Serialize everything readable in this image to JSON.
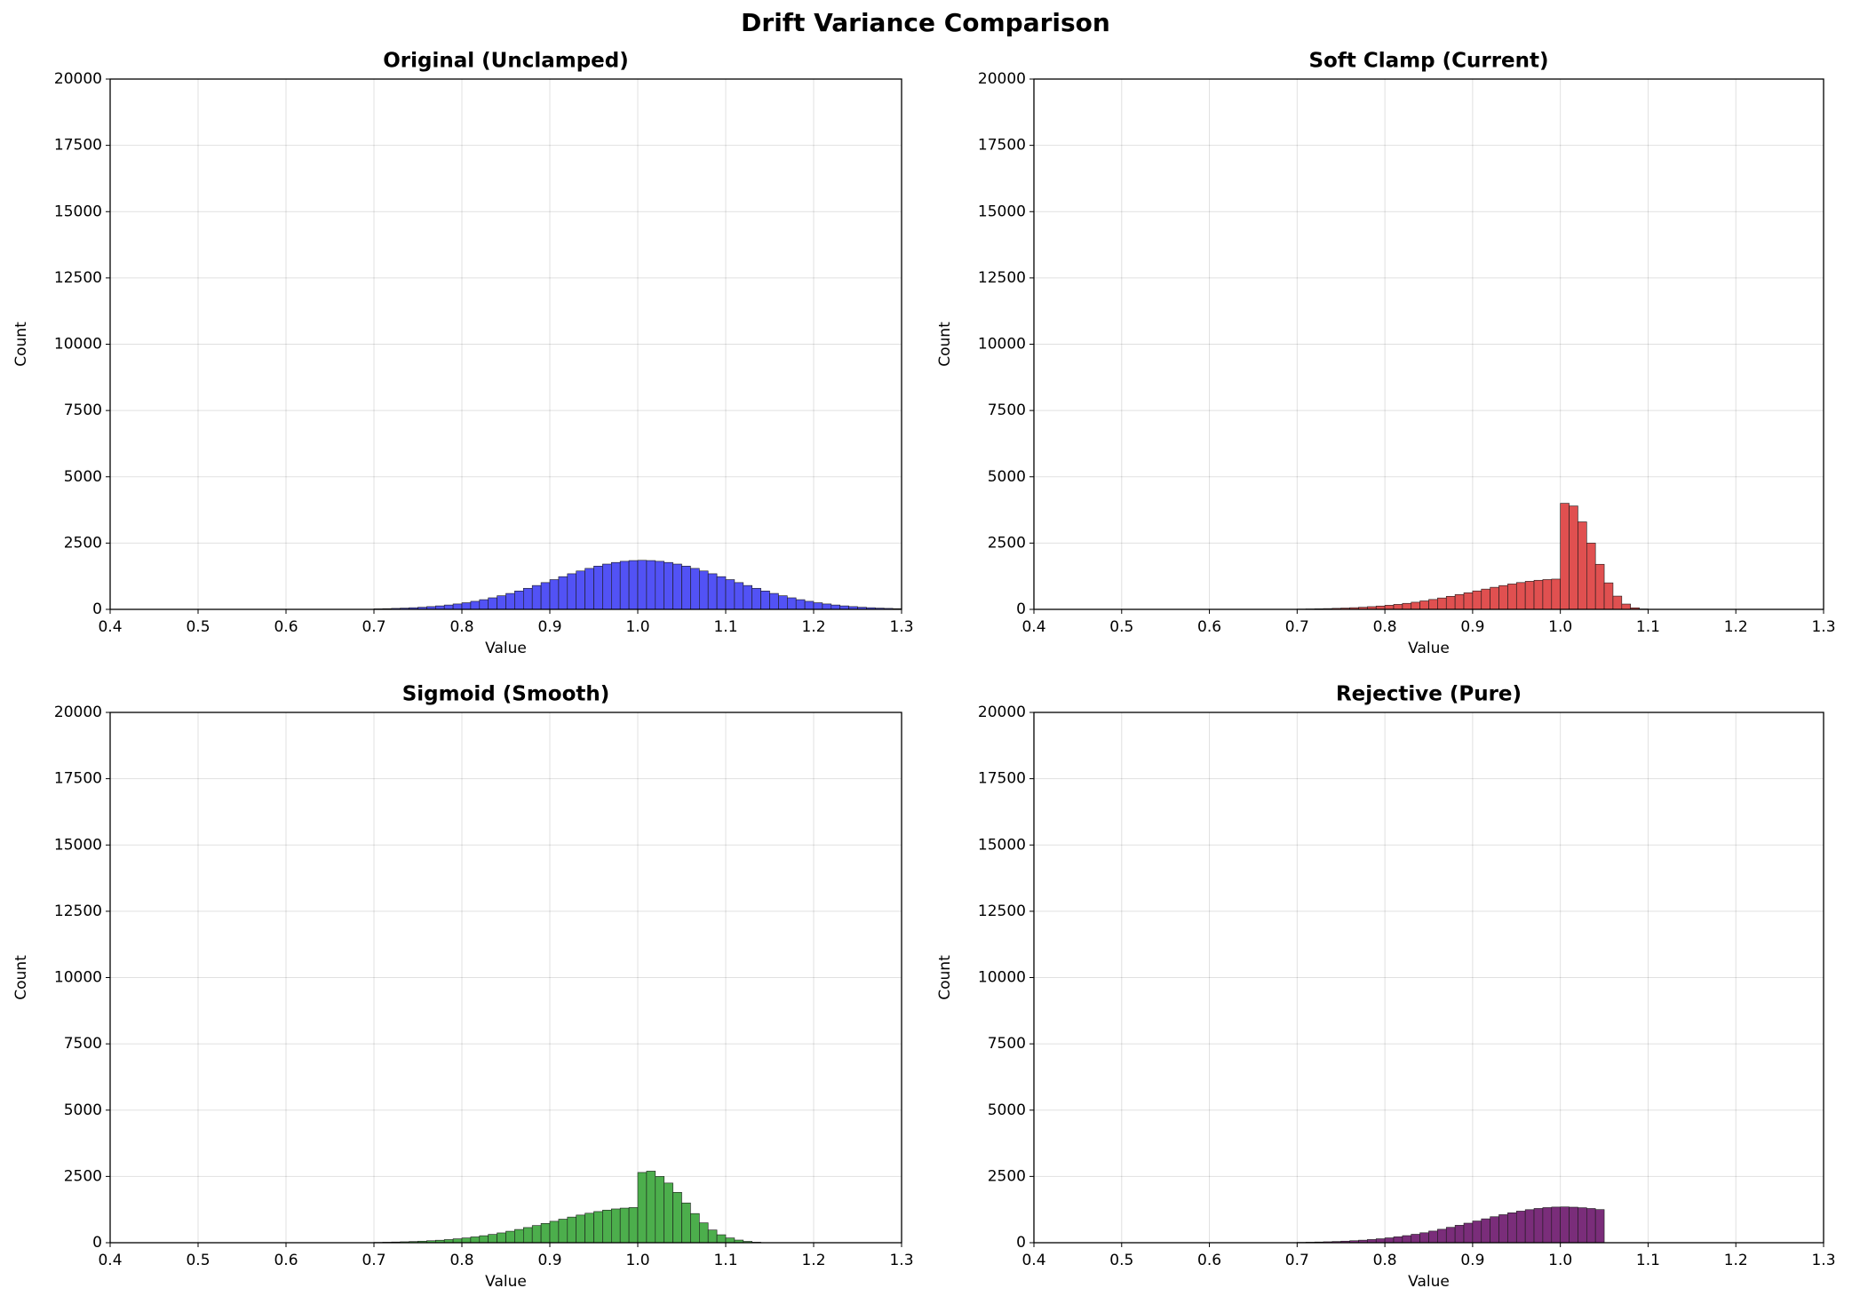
{
  "title": "Drift Variance Comparison",
  "chart_data": [
    {
      "type": "histogram",
      "title": "Original (Unclamped)",
      "xlabel": "Value",
      "ylabel": "Count",
      "color": "#5252f5",
      "edgecolor": "#1a1a1a",
      "bins": [
        0.7,
        0.71,
        0.72,
        0.73,
        0.74,
        0.75,
        0.76,
        0.77,
        0.78,
        0.79,
        0.8,
        0.81,
        0.82,
        0.83,
        0.84,
        0.85,
        0.86,
        0.87,
        0.88,
        0.89,
        0.9,
        0.91,
        0.92,
        0.93,
        0.94,
        0.95,
        0.96,
        0.97,
        0.98,
        0.99,
        1.0,
        1.01,
        1.02,
        1.03,
        1.04,
        1.05,
        1.06,
        1.07,
        1.08,
        1.09,
        1.1,
        1.11,
        1.12,
        1.13,
        1.14,
        1.15,
        1.16,
        1.17,
        1.18,
        1.19,
        1.2,
        1.21,
        1.22,
        1.23,
        1.24,
        1.25,
        1.26,
        1.27,
        1.28,
        1.29,
        1.3
      ],
      "counts": [
        20,
        28,
        37,
        48,
        63,
        81,
        104,
        131,
        164,
        204,
        250,
        304,
        366,
        436,
        514,
        601,
        694,
        795,
        900,
        1010,
        1122,
        1234,
        1343,
        1448,
        1545,
        1632,
        1708,
        1769,
        1813,
        1841,
        1850,
        1841,
        1813,
        1769,
        1708,
        1632,
        1545,
        1448,
        1343,
        1234,
        1122,
        1010,
        900,
        795,
        694,
        601,
        514,
        436,
        366,
        304,
        250,
        204,
        164,
        131,
        104,
        81,
        63,
        48,
        37,
        28
      ],
      "xlim": [
        0.4,
        1.3
      ],
      "ylim": [
        0,
        20000
      ],
      "xticks": [
        0.4,
        0.5,
        0.6,
        0.7,
        0.8,
        0.9,
        {
          "value": 1,
          "label": "1.0"
        },
        1.1,
        1.2,
        1.3
      ],
      "yticks": [
        0,
        2500,
        5000,
        7500,
        10000,
        12500,
        15000,
        17500,
        20000
      ],
      "grid": true
    },
    {
      "type": "histogram",
      "title": "Soft Clamp (Current)",
      "xlabel": "Value",
      "ylabel": "Count",
      "color": "#e05050",
      "edgecolor": "#1a1a1a",
      "bins": [
        0.7,
        0.71,
        0.72,
        0.73,
        0.74,
        0.75,
        0.76,
        0.77,
        0.78,
        0.79,
        0.8,
        0.81,
        0.82,
        0.83,
        0.84,
        0.85,
        0.86,
        0.87,
        0.88,
        0.89,
        0.9,
        0.91,
        0.92,
        0.93,
        0.94,
        0.95,
        0.96,
        0.97,
        0.98,
        0.99,
        1.0,
        1.01,
        1.02,
        1.03,
        1.04,
        1.05,
        1.06,
        1.07,
        1.08,
        1.09,
        1.1,
        1.11,
        1.12,
        1.13,
        1.14,
        1.15,
        1.16,
        1.17,
        1.18,
        1.19,
        1.2,
        1.21,
        1.22,
        1.23,
        1.24,
        1.25,
        1.26,
        1.27,
        1.28,
        1.29,
        1.3
      ],
      "counts": [
        12,
        17,
        23,
        30,
        39,
        50,
        64,
        81,
        102,
        126,
        155,
        188,
        227,
        270,
        319,
        373,
        430,
        493,
        558,
        626,
        696,
        765,
        833,
        898,
        958,
        1012,
        1059,
        1097,
        1124,
        1141,
        4000,
        3900,
        3300,
        2500,
        1700,
        1000,
        500,
        200,
        60,
        15,
        0,
        0,
        0,
        0,
        0,
        0,
        0,
        0,
        0,
        0,
        0,
        0,
        0,
        0,
        0,
        0,
        0,
        0,
        0,
        0
      ],
      "xlim": [
        0.4,
        1.3
      ],
      "ylim": [
        0,
        20000
      ],
      "xticks": [
        0.4,
        0.5,
        0.6,
        0.7,
        0.8,
        0.9,
        {
          "value": 1,
          "label": "1.0"
        },
        1.1,
        1.2,
        1.3
      ],
      "yticks": [
        0,
        2500,
        5000,
        7500,
        10000,
        12500,
        15000,
        17500,
        20000
      ],
      "grid": true
    },
    {
      "type": "histogram",
      "title": "Sigmoid (Smooth)",
      "xlabel": "Value",
      "ylabel": "Count",
      "color": "#4cae4c",
      "edgecolor": "#1a1a1a",
      "bins": [
        0.7,
        0.71,
        0.72,
        0.73,
        0.74,
        0.75,
        0.76,
        0.77,
        0.78,
        0.79,
        0.8,
        0.81,
        0.82,
        0.83,
        0.84,
        0.85,
        0.86,
        0.87,
        0.88,
        0.89,
        0.9,
        0.91,
        0.92,
        0.93,
        0.94,
        0.95,
        0.96,
        0.97,
        0.98,
        0.99,
        1.0,
        1.01,
        1.02,
        1.03,
        1.04,
        1.05,
        1.06,
        1.07,
        1.08,
        1.09,
        1.1,
        1.11,
        1.12,
        1.13,
        1.14,
        1.15,
        1.16,
        1.17,
        1.18,
        1.19,
        1.2,
        1.21,
        1.22,
        1.23,
        1.24,
        1.25,
        1.26,
        1.27,
        1.28,
        1.29,
        1.3
      ],
      "counts": [
        14,
        20,
        27,
        35,
        45,
        58,
        75,
        94,
        118,
        147,
        180,
        219,
        264,
        314,
        370,
        433,
        500,
        572,
        648,
        727,
        808,
        888,
        967,
        1043,
        1112,
        1175,
        1230,
        1274,
        1305,
        1326,
        2650,
        2700,
        2500,
        2250,
        1900,
        1500,
        1100,
        750,
        480,
        300,
        180,
        100,
        50,
        20,
        0,
        0,
        0,
        0,
        0,
        0,
        0,
        0,
        0,
        0,
        0,
        0,
        0,
        0,
        0,
        0
      ],
      "xlim": [
        0.4,
        1.3
      ],
      "ylim": [
        0,
        20000
      ],
      "xticks": [
        0.4,
        0.5,
        0.6,
        0.7,
        0.8,
        0.9,
        {
          "value": 1,
          "label": "1.0"
        },
        1.1,
        1.2,
        1.3
      ],
      "yticks": [
        0,
        2500,
        5000,
        7500,
        10000,
        12500,
        15000,
        17500,
        20000
      ],
      "grid": true
    },
    {
      "type": "histogram",
      "title": "Rejective (Pure)",
      "xlabel": "Value",
      "ylabel": "Count",
      "color": "#7a2d7a",
      "edgecolor": "#1a1a1a",
      "bins": [
        0.7,
        0.71,
        0.72,
        0.73,
        0.74,
        0.75,
        0.76,
        0.77,
        0.78,
        0.79,
        0.8,
        0.81,
        0.82,
        0.83,
        0.84,
        0.85,
        0.86,
        0.87,
        0.88,
        0.89,
        0.9,
        0.91,
        0.92,
        0.93,
        0.94,
        0.95,
        0.96,
        0.97,
        0.98,
        0.99,
        1.0,
        1.01,
        1.02,
        1.03,
        1.04,
        1.05,
        1.06,
        1.07,
        1.08,
        1.09,
        1.1,
        1.11,
        1.12,
        1.13,
        1.14,
        1.15,
        1.16,
        1.17,
        1.18,
        1.19,
        1.2,
        1.21,
        1.22,
        1.23,
        1.24,
        1.25,
        1.26,
        1.27,
        1.28,
        1.29,
        1.3
      ],
      "counts": [
        15,
        20,
        27,
        35,
        46,
        59,
        76,
        96,
        120,
        149,
        183,
        222,
        267,
        318,
        375,
        439,
        507,
        580,
        657,
        737,
        819,
        901,
        980,
        1057,
        1128,
        1191,
        1247,
        1291,
        1324,
        1344,
        1350,
        1340,
        1320,
        1290,
        1250,
        0,
        0,
        0,
        0,
        0,
        0,
        0,
        0,
        0,
        0,
        0,
        0,
        0,
        0,
        0,
        0,
        0,
        0,
        0,
        0,
        0,
        0,
        0,
        0,
        0
      ],
      "xlim": [
        0.4,
        1.3
      ],
      "ylim": [
        0,
        20000
      ],
      "xticks": [
        0.4,
        0.5,
        0.6,
        0.7,
        0.8,
        0.9,
        {
          "value": 1,
          "label": "1.0"
        },
        1.1,
        1.2,
        1.3
      ],
      "yticks": [
        0,
        2500,
        5000,
        7500,
        10000,
        12500,
        15000,
        17500,
        20000
      ],
      "grid": true
    }
  ]
}
